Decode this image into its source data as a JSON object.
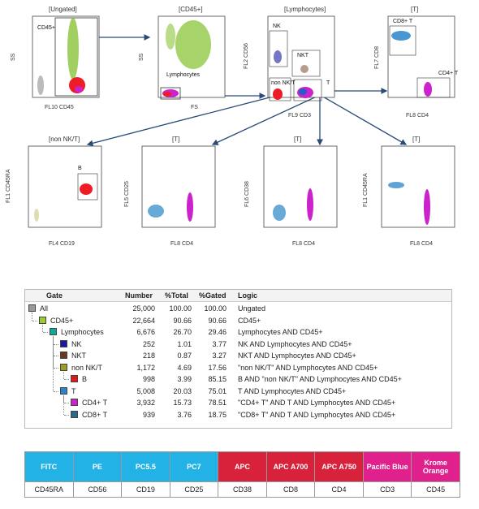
{
  "plots": [
    {
      "title": "[Ungated]",
      "xlabel": "FL10 CD45",
      "ylabel": "SS",
      "gates": [
        "CD45+"
      ]
    },
    {
      "title": "[CD45+]",
      "xlabel": "FS",
      "ylabel": "SS",
      "gates": [
        "Lymphocytes"
      ]
    },
    {
      "title": "[Lymphocytes]",
      "xlabel": "FL9 CD3",
      "ylabel": "FL2 CD56",
      "gates": [
        "NK",
        "NKT",
        "non NK/T",
        "T"
      ]
    },
    {
      "title": "[T]",
      "xlabel": "FL8 CD4",
      "ylabel": "FL7 CD8",
      "gates": [
        "CD8+ T",
        "CD4+ T"
      ]
    },
    {
      "title": "[non NK/T]",
      "xlabel": "FL4 CD19",
      "ylabel": "FL1 CD45RA",
      "gates": [
        "B"
      ]
    },
    {
      "title": "[T]",
      "xlabel": "FL8 CD4",
      "ylabel": "FL5 CD25",
      "gates": []
    },
    {
      "title": "[T]",
      "xlabel": "FL8 CD4",
      "ylabel": "FL6 CD38",
      "gates": []
    },
    {
      "title": "[T]",
      "xlabel": "FL8 CD4",
      "ylabel": "FL1 CD45RA",
      "gates": []
    }
  ],
  "gate_table": {
    "headers": {
      "gate": "Gate",
      "number": "Number",
      "total": "%Total",
      "gated": "%Gated",
      "logic": "Logic"
    },
    "rows": [
      {
        "gate": "All",
        "number": "25,000",
        "total": "100.00",
        "gated": "100.00",
        "logic": "Ungated",
        "level": 0,
        "color": "#9a9a9a"
      },
      {
        "gate": "CD45+",
        "number": "22,664",
        "total": "90.66",
        "gated": "90.66",
        "logic": "CD45+",
        "level": 1,
        "color": "#99cc33"
      },
      {
        "gate": "Lymphocytes",
        "number": "6,676",
        "total": "26.70",
        "gated": "29.46",
        "logic": "Lymphocytes AND CD45+",
        "level": 2,
        "color": "#11a79a"
      },
      {
        "gate": "NK",
        "number": "252",
        "total": "1.01",
        "gated": "3.77",
        "logic": "NK AND Lymphocytes AND CD45+",
        "level": 3,
        "color": "#1a1aa0"
      },
      {
        "gate": "NKT",
        "number": "218",
        "total": "0.87",
        "gated": "3.27",
        "logic": "NKT AND Lymphocytes AND CD45+",
        "level": 3,
        "color": "#6b3a1e"
      },
      {
        "gate": "non NK/T",
        "number": "1,172",
        "total": "4.69",
        "gated": "17.56",
        "logic": "\"non NK/T\" AND Lymphocytes AND CD45+",
        "level": 3,
        "color": "#9aa020"
      },
      {
        "gate": "B",
        "number": "998",
        "total": "3.99",
        "gated": "85.15",
        "logic": "B AND \"non NK/T\" AND Lymphocytes AND CD45+",
        "level": 4,
        "color": "#e01a1a"
      },
      {
        "gate": "T",
        "number": "5,008",
        "total": "20.03",
        "gated": "75.01",
        "logic": "T AND Lymphocytes AND CD45+",
        "level": 3,
        "color": "#2a84c8"
      },
      {
        "gate": "CD4+ T",
        "number": "3,932",
        "total": "15.73",
        "gated": "78.51",
        "logic": "\"CD4+ T\" AND T AND Lymphocytes AND CD45+",
        "level": 4,
        "color": "#cc22cc"
      },
      {
        "gate": "CD8+ T",
        "number": "939",
        "total": "3.76",
        "gated": "18.75",
        "logic": "\"CD8+ T\" AND T AND Lymphocytes AND CD45+",
        "level": 4,
        "color": "#2a6a8a"
      }
    ]
  },
  "fluor_table": [
    {
      "fluor": "FITC",
      "marker": "CD45RA",
      "color": "#22b2e6"
    },
    {
      "fluor": "PE",
      "marker": "CD56",
      "color": "#22b2e6"
    },
    {
      "fluor": "PC5.5",
      "marker": "CD19",
      "color": "#22b2e6"
    },
    {
      "fluor": "PC7",
      "marker": "CD25",
      "color": "#22b2e6"
    },
    {
      "fluor": "APC",
      "marker": "CD38",
      "color": "#d8213a"
    },
    {
      "fluor": "APC A700",
      "marker": "CD8",
      "color": "#d8213a"
    },
    {
      "fluor": "APC A750",
      "marker": "CD4",
      "color": "#d8213a"
    },
    {
      "fluor": "Pacific Blue",
      "marker": "CD3",
      "color": "#e0208c"
    },
    {
      "fluor": "Krome Orange",
      "marker": "CD45",
      "color": "#e0208c"
    }
  ]
}
